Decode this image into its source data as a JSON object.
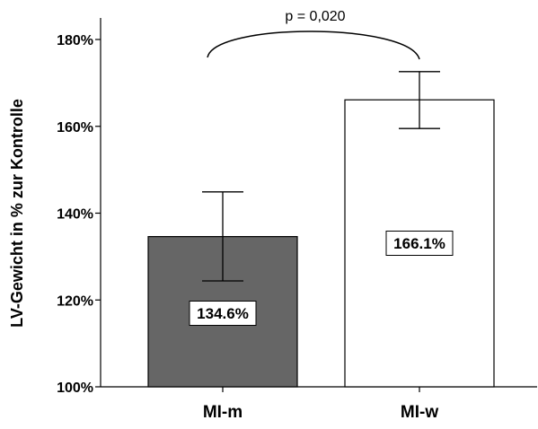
{
  "chart_data": {
    "type": "bar",
    "categories": [
      "MI-m",
      "MI-w"
    ],
    "values": [
      134.6,
      166.1
    ],
    "value_labels": [
      "134.6%",
      "166.1%"
    ],
    "error_bars": [
      {
        "low": 124.4,
        "high": 144.9
      },
      {
        "low": 159.5,
        "high": 172.6
      }
    ],
    "bar_colors": [
      "#666666",
      "#ffffff"
    ],
    "ylabel": "LV-Gewicht in % zur Kontrolle",
    "xlabel": "",
    "ylim": [
      100,
      185
    ],
    "yticks": [
      100,
      120,
      140,
      160,
      180
    ],
    "ytick_labels": [
      "100%",
      "120%",
      "140%",
      "160%",
      "180%"
    ],
    "annotation": "p = 0,020",
    "grid": false
  }
}
